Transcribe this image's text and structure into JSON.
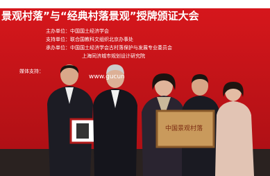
{
  "banner": {
    "title": "景观村落”与“经典村落景观”授牌颁证大会",
    "lines": [
      "主办单位：中国国土经济学会",
      "支持单位：联合国教科文组织北京办事处",
      "承办单位：中国国土经济学会古村落保护与发展专业委员会",
      "上海同济城市规划设计研究院"
    ],
    "media_label": "媒体支持：",
    "url": "www.gucun"
  },
  "plaque": "中国景观村落"
}
